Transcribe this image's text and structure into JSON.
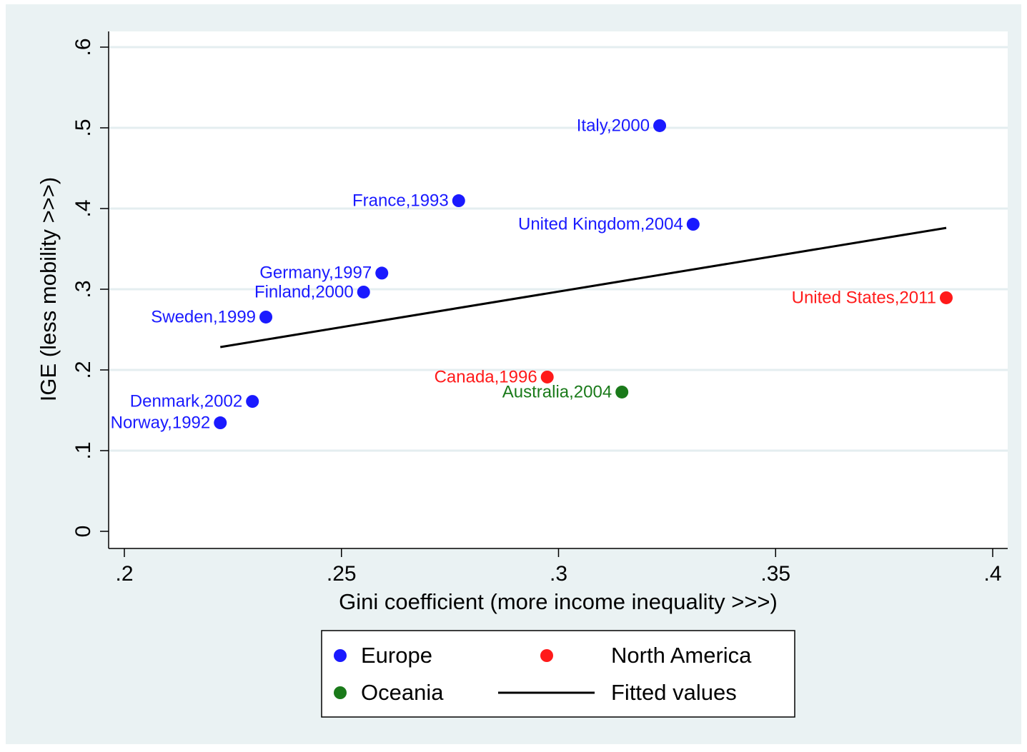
{
  "chart_data": {
    "type": "scatter",
    "x_label": "Gini coefficient (more income inequality >>>)",
    "y_label": "IGE (less mobility >>>)",
    "xlim": [
      0.2,
      0.4
    ],
    "ylim": [
      0,
      0.6
    ],
    "xticks": [
      {
        "value": 0.2,
        "label": ".2"
      },
      {
        "value": 0.25,
        "label": ".25"
      },
      {
        "value": 0.3,
        "label": ".3"
      },
      {
        "value": 0.35,
        "label": ".35"
      },
      {
        "value": 0.4,
        "label": ".4"
      }
    ],
    "yticks": [
      0,
      {
        "value": 0.1,
        "label": ".1"
      },
      {
        "value": 0.2,
        "label": ".2"
      },
      {
        "value": 0.3,
        "label": ".3"
      },
      {
        "value": 0.4,
        "label": ".4"
      },
      {
        "value": 0.5,
        "label": ".5"
      },
      {
        "value": 0.6,
        "label": ".6"
      }
    ],
    "grid": true,
    "legend_position": "bottom",
    "series": [
      {
        "name": "Europe",
        "color": "#1a1aff",
        "mode": "markers",
        "labels": [
          "Italy,2000",
          "France,1993",
          "United Kingdom,2004",
          "Germany,1997",
          "Finland,2000",
          "Sweden,1999",
          "Denmark,2002",
          "Norway,1992"
        ],
        "x": [
          0.3233,
          0.277,
          0.331,
          0.2593,
          0.2551,
          0.2326,
          0.2295,
          0.2221
        ],
        "values": [
          0.5027,
          0.4097,
          0.3805,
          0.32,
          0.2965,
          0.2655,
          0.161,
          0.1345
        ]
      },
      {
        "name": "North America",
        "color": "#ff1a1a",
        "mode": "markers",
        "labels": [
          "United States,2011",
          "Canada,1996"
        ],
        "x": [
          0.3893,
          0.2974
        ],
        "values": [
          0.2894,
          0.1912
        ]
      },
      {
        "name": "Oceania",
        "color": "#1a7a1a",
        "mode": "markers",
        "labels": [
          "Australia,2004"
        ],
        "x": [
          0.3146
        ],
        "values": [
          0.1726
        ]
      },
      {
        "name": "Fitted values",
        "color": "#000000",
        "mode": "line",
        "x": [
          0.2221,
          0.3893
        ],
        "values": [
          0.2283,
          0.376
        ]
      }
    ]
  }
}
